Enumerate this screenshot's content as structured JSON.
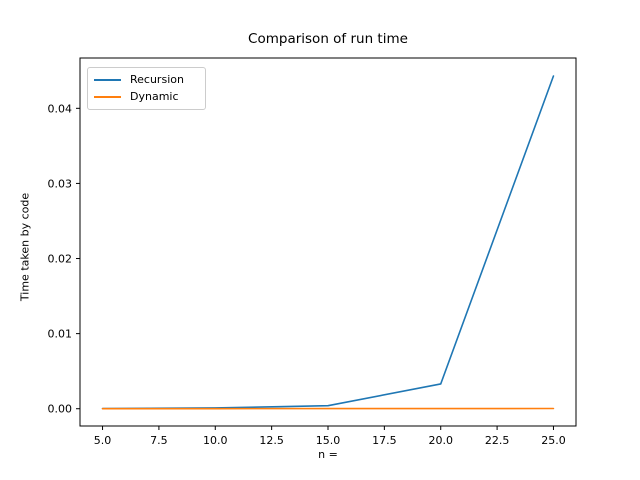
{
  "figure": {
    "background": "#ffffff",
    "spine_color": "#000000",
    "tick_color": "#000000",
    "text_color": "#000000",
    "legend_border_color": "#cccccc"
  },
  "chart_data": {
    "type": "line",
    "title": "Comparison of run time",
    "xlabel": "n =",
    "ylabel": "Time taken by code",
    "x": [
      5,
      10,
      15,
      20,
      25
    ],
    "series": [
      {
        "name": "Recursion",
        "color": "#1f77b4",
        "values": [
          3e-05,
          0.0001,
          0.0004,
          0.0033,
          0.0443
        ]
      },
      {
        "name": "Dynamic",
        "color": "#ff7f0e",
        "values": [
          1e-05,
          1e-05,
          2e-05,
          2e-05,
          3e-05
        ]
      }
    ],
    "xlim": [
      4,
      26
    ],
    "ylim": [
      -0.0023,
      0.0467
    ],
    "xticks": {
      "values": [
        5,
        7.5,
        10,
        12.5,
        15,
        17.5,
        20,
        22.5,
        25
      ],
      "labels": [
        "5.0",
        "7.5",
        "10.0",
        "12.5",
        "15.0",
        "17.5",
        "20.0",
        "22.5",
        "25.0"
      ]
    },
    "yticks": {
      "values": [
        0,
        0.01,
        0.02,
        0.03,
        0.04
      ],
      "labels": [
        "0.00",
        "0.01",
        "0.02",
        "0.03",
        "0.04"
      ]
    },
    "legend": {
      "position": "upper left",
      "entries": [
        "Recursion",
        "Dynamic"
      ]
    },
    "grid": false
  }
}
